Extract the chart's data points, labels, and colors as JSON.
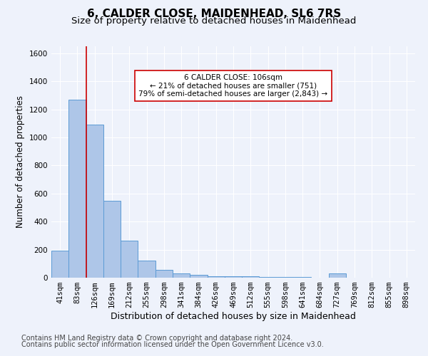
{
  "title": "6, CALDER CLOSE, MAIDENHEAD, SL6 7RS",
  "subtitle": "Size of property relative to detached houses in Maidenhead",
  "xlabel": "Distribution of detached houses by size in Maidenhead",
  "ylabel": "Number of detached properties",
  "bar_color": "#aec6e8",
  "bar_edge_color": "#5b9bd5",
  "categories": [
    "41sqm",
    "83sqm",
    "126sqm",
    "169sqm",
    "212sqm",
    "255sqm",
    "298sqm",
    "341sqm",
    "384sqm",
    "426sqm",
    "469sqm",
    "512sqm",
    "555sqm",
    "598sqm",
    "641sqm",
    "684sqm",
    "727sqm",
    "769sqm",
    "812sqm",
    "855sqm",
    "898sqm"
  ],
  "values": [
    195,
    1270,
    1090,
    550,
    265,
    120,
    55,
    30,
    20,
    10,
    10,
    10,
    5,
    5,
    5,
    0,
    30,
    0,
    0,
    0,
    0
  ],
  "ylim": [
    0,
    1650
  ],
  "yticks": [
    0,
    200,
    400,
    600,
    800,
    1000,
    1200,
    1400,
    1600
  ],
  "vline_x": 1.5,
  "vline_color": "#cc0000",
  "annotation_text": "6 CALDER CLOSE: 106sqm\n← 21% of detached houses are smaller (751)\n79% of semi-detached houses are larger (2,843) →",
  "annotation_box_color": "#ffffff",
  "annotation_box_edge": "#cc0000",
  "footer_line1": "Contains HM Land Registry data © Crown copyright and database right 2024.",
  "footer_line2": "Contains public sector information licensed under the Open Government Licence v3.0.",
  "background_color": "#eef2fb",
  "grid_color": "#ffffff",
  "title_fontsize": 11,
  "subtitle_fontsize": 9.5,
  "axis_label_fontsize": 8.5,
  "tick_fontsize": 7.5,
  "footer_fontsize": 7
}
